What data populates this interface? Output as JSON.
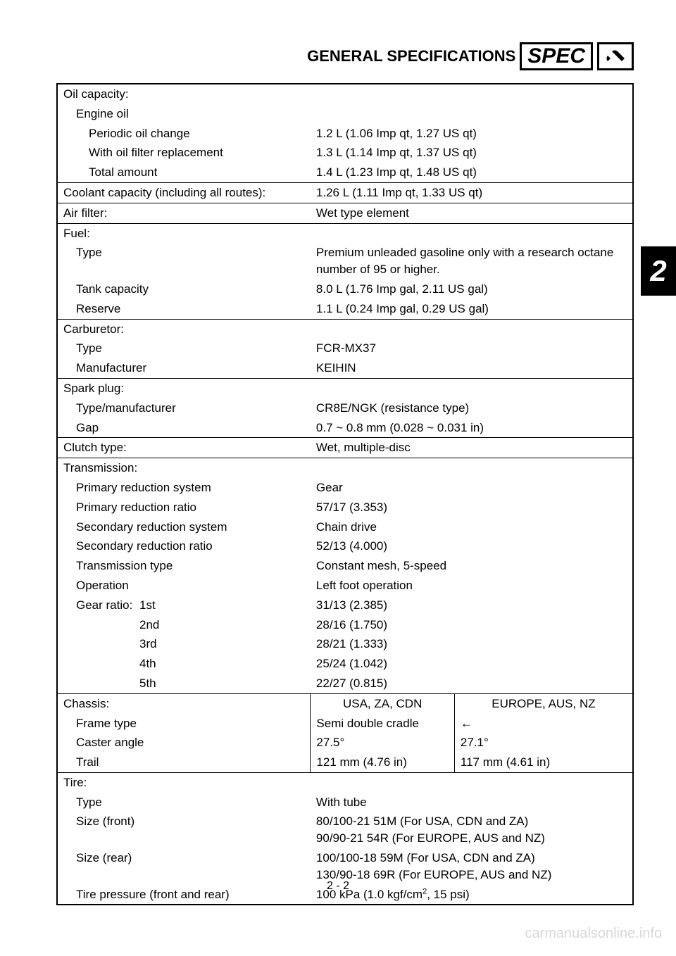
{
  "header": {
    "title": "GENERAL SPECIFICATIONS",
    "spec_label": "SPEC"
  },
  "chapter_tab": "2",
  "page_number": "2 - 2",
  "watermark": "carmanualsonline.info",
  "rows": [
    {
      "label": "Oil capacity:",
      "v": "",
      "cls": "sec-top"
    },
    {
      "label": "Engine oil",
      "v": "",
      "cls": "",
      "i": 1
    },
    {
      "label": "Periodic oil change",
      "v": "1.2 L (1.06 Imp qt, 1.27 US qt)",
      "cls": "",
      "i": 2
    },
    {
      "label": "With oil filter replacement",
      "v": "1.3 L (1.14 Imp qt, 1.37 US qt)",
      "cls": "",
      "i": 2
    },
    {
      "label": "Total amount",
      "v": "1.4 L (1.23 Imp qt, 1.48 US qt)",
      "cls": "",
      "i": 2
    },
    {
      "label": "Coolant capacity (including all routes):",
      "v": "1.26 L (1.11 Imp qt, 1.33 US qt)",
      "cls": "sec-top"
    },
    {
      "label": "Air filter:",
      "v": "Wet type element",
      "cls": "sec-top"
    },
    {
      "label": "Fuel:",
      "v": "",
      "cls": "sec-top"
    },
    {
      "label": "Type",
      "v": "Premium unleaded gasoline only with a research octane number of 95 or higher.",
      "cls": "",
      "i": 1
    },
    {
      "label": "Tank capacity",
      "v": "8.0 L (1.76 Imp gal, 2.11 US gal)",
      "cls": "",
      "i": 1
    },
    {
      "label": "Reserve",
      "v": "1.1 L (0.24 Imp gal, 0.29 US gal)",
      "cls": "",
      "i": 1
    },
    {
      "label": "Carburetor:",
      "v": "",
      "cls": "sec-top"
    },
    {
      "label": "Type",
      "v": "FCR-MX37",
      "cls": "",
      "i": 1
    },
    {
      "label": "Manufacturer",
      "v": "KEIHIN",
      "cls": "",
      "i": 1
    },
    {
      "label": "Spark plug:",
      "v": "",
      "cls": "sec-top"
    },
    {
      "label": "Type/manufacturer",
      "v": "CR8E/NGK (resistance type)",
      "cls": "",
      "i": 1
    },
    {
      "label": "Gap",
      "v": "0.7 ~ 0.8 mm (0.028 ~ 0.031 in)",
      "cls": "",
      "i": 1
    },
    {
      "label": "Clutch type:",
      "v": "Wet, multiple-disc",
      "cls": "sec-top"
    },
    {
      "label": "Transmission:",
      "v": "",
      "cls": "sec-top"
    },
    {
      "label": "Primary reduction system",
      "v": "Gear",
      "cls": "",
      "i": 1
    },
    {
      "label": "Primary reduction ratio",
      "v": "57/17 (3.353)",
      "cls": "",
      "i": 1
    },
    {
      "label": "Secondary reduction system",
      "v": "Chain drive",
      "cls": "",
      "i": 1
    },
    {
      "label": "Secondary reduction ratio",
      "v": "52/13 (4.000)",
      "cls": "",
      "i": 1
    },
    {
      "label": "Transmission type",
      "v": "Constant mesh, 5-speed",
      "cls": "",
      "i": 1
    },
    {
      "label": "Operation",
      "v": "Left foot operation",
      "cls": "",
      "i": 1
    }
  ],
  "gear": {
    "label": "Gear ratio:",
    "items": [
      {
        "n": "1st",
        "v": "31/13 (2.385)"
      },
      {
        "n": "2nd",
        "v": "28/16 (1.750)"
      },
      {
        "n": "3rd",
        "v": "28/21 (1.333)"
      },
      {
        "n": "4th",
        "v": "25/24 (1.042)"
      },
      {
        "n": "5th",
        "v": "22/27 (0.815)"
      }
    ]
  },
  "chassis": {
    "label": "Chassis:",
    "h1": "USA, ZA, CDN",
    "h2": "EUROPE, AUS, NZ",
    "rows": [
      {
        "l": "Frame type",
        "v1": "Semi double cradle",
        "v2": "←"
      },
      {
        "l": "Caster angle",
        "v1": "27.5°",
        "v2": "27.1°"
      },
      {
        "l": "Trail",
        "v1": "121 mm (4.76 in)",
        "v2": "117 mm (4.61 in)"
      }
    ]
  },
  "tire": {
    "label": "Tire:",
    "rows": [
      {
        "l": "Type",
        "v": "With tube"
      },
      {
        "l": "Size (front)",
        "v": "80/100-21 51M (For USA, CDN and ZA)\n90/90-21 54R (For EUROPE, AUS and NZ)"
      },
      {
        "l": "Size (rear)",
        "v": "100/100-18 59M (For USA, CDN and ZA)\n130/90-18 69R (For EUROPE, AUS and NZ)"
      }
    ],
    "pressure_l": "Tire pressure (front and rear)",
    "pressure_v_pre": "100 kPa (1.0 kgf/cm",
    "pressure_v_sup": "2",
    "pressure_v_post": ", 15 psi)"
  }
}
